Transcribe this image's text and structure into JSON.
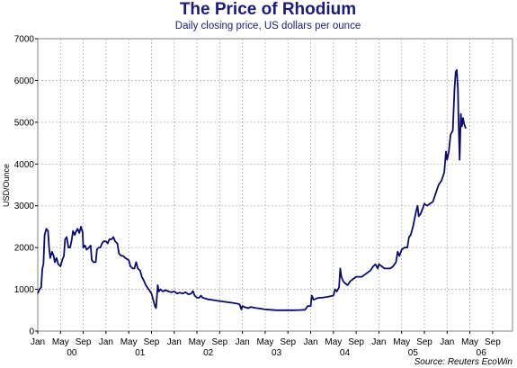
{
  "chart_data": {
    "type": "line",
    "title": "The Price of Rhodium",
    "subtitle": "Daily closing price, US dollars per ounce",
    "ylabel": "USD/Ounce",
    "source": "Source: Reuters EcoWin",
    "ylim": [
      0,
      7000
    ],
    "yticks": [
      0,
      1000,
      2000,
      3000,
      4000,
      5000,
      6000,
      7000
    ],
    "xlim": [
      0,
      83.5
    ],
    "month_ticks": [
      {
        "m": 0,
        "label": "Jan"
      },
      {
        "m": 4,
        "label": "May"
      },
      {
        "m": 8,
        "label": "Sep"
      },
      {
        "m": 12,
        "label": "Jan"
      },
      {
        "m": 16,
        "label": "May"
      },
      {
        "m": 20,
        "label": "Sep"
      },
      {
        "m": 24,
        "label": "Jan"
      },
      {
        "m": 28,
        "label": "May"
      },
      {
        "m": 32,
        "label": "Sep"
      },
      {
        "m": 36,
        "label": "Jan"
      },
      {
        "m": 40,
        "label": "May"
      },
      {
        "m": 44,
        "label": "Sep"
      },
      {
        "m": 48,
        "label": "Jan"
      },
      {
        "m": 52,
        "label": "May"
      },
      {
        "m": 56,
        "label": "Sep"
      },
      {
        "m": 60,
        "label": "Jan"
      },
      {
        "m": 64,
        "label": "May"
      },
      {
        "m": 68,
        "label": "Sep"
      },
      {
        "m": 72,
        "label": "Jan"
      },
      {
        "m": 76,
        "label": "May"
      },
      {
        "m": 80,
        "label": "Sep"
      }
    ],
    "year_labels": [
      {
        "m": 6,
        "label": "00"
      },
      {
        "m": 18,
        "label": "01"
      },
      {
        "m": 30,
        "label": "02"
      },
      {
        "m": 42,
        "label": "03"
      },
      {
        "m": 54,
        "label": "04"
      },
      {
        "m": 66,
        "label": "05"
      },
      {
        "m": 78,
        "label": "06"
      }
    ],
    "x_label_last": "Sep",
    "series": [
      {
        "color": "#0a0a70",
        "points": [
          [
            0,
            900
          ],
          [
            0.3,
            1000
          ],
          [
            0.6,
            1050
          ],
          [
            0.8,
            1500
          ],
          [
            1.0,
            1600
          ],
          [
            1.2,
            2300
          ],
          [
            1.5,
            2450
          ],
          [
            1.8,
            2400
          ],
          [
            2.0,
            2000
          ],
          [
            2.2,
            1750
          ],
          [
            2.5,
            1900
          ],
          [
            2.8,
            1800
          ],
          [
            3.0,
            1650
          ],
          [
            3.3,
            1750
          ],
          [
            3.6,
            1600
          ],
          [
            4.0,
            1550
          ],
          [
            4.3,
            1700
          ],
          [
            4.6,
            1800
          ],
          [
            4.8,
            2200
          ],
          [
            5.1,
            2250
          ],
          [
            5.4,
            2000
          ],
          [
            5.7,
            2000
          ],
          [
            6.0,
            2200
          ],
          [
            6.2,
            2400
          ],
          [
            6.5,
            2300
          ],
          [
            6.8,
            2400
          ],
          [
            7.0,
            2450
          ],
          [
            7.3,
            2350
          ],
          [
            7.6,
            2500
          ],
          [
            7.9,
            2350
          ],
          [
            8.0,
            2000
          ],
          [
            8.3,
            2050
          ],
          [
            8.6,
            1950
          ],
          [
            9.0,
            2000
          ],
          [
            9.3,
            2050
          ],
          [
            9.5,
            1700
          ],
          [
            9.8,
            1650
          ],
          [
            10.2,
            1650
          ],
          [
            10.4,
            1950
          ],
          [
            10.7,
            2000
          ],
          [
            11.0,
            2000
          ],
          [
            11.3,
            2100
          ],
          [
            11.6,
            2150
          ],
          [
            12.0,
            2150
          ],
          [
            12.3,
            2100
          ],
          [
            12.6,
            2200
          ],
          [
            13.0,
            2200
          ],
          [
            13.3,
            2250
          ],
          [
            13.6,
            2150
          ],
          [
            14.0,
            2100
          ],
          [
            14.3,
            1850
          ],
          [
            14.7,
            1800
          ],
          [
            15.0,
            1800
          ],
          [
            15.4,
            1750
          ],
          [
            16.0,
            1700
          ],
          [
            16.3,
            1550
          ],
          [
            16.7,
            1500
          ],
          [
            17.0,
            1500
          ],
          [
            17.3,
            1650
          ],
          [
            17.6,
            1500
          ],
          [
            18.0,
            1450
          ],
          [
            18.3,
            1300
          ],
          [
            18.7,
            1200
          ],
          [
            19.0,
            1100
          ],
          [
            19.5,
            1000
          ],
          [
            20.0,
            900
          ],
          [
            20.3,
            750
          ],
          [
            20.6,
            600
          ],
          [
            20.8,
            550
          ],
          [
            21.0,
            900
          ],
          [
            21.1,
            1100
          ],
          [
            21.3,
            950
          ],
          [
            21.6,
            1000
          ],
          [
            22.0,
            950
          ],
          [
            22.5,
            980
          ],
          [
            23.0,
            950
          ],
          [
            23.5,
            930
          ],
          [
            24.0,
            950
          ],
          [
            24.5,
            900
          ],
          [
            25.0,
            920
          ],
          [
            25.5,
            900
          ],
          [
            26.0,
            930
          ],
          [
            26.5,
            880
          ],
          [
            27.0,
            900
          ],
          [
            27.3,
            960
          ],
          [
            27.6,
            850
          ],
          [
            28.0,
            800
          ],
          [
            28.4,
            800
          ],
          [
            28.7,
            850
          ],
          [
            29.0,
            800
          ],
          [
            29.5,
            780
          ],
          [
            30.0,
            760
          ],
          [
            31.0,
            740
          ],
          [
            32.0,
            720
          ],
          [
            33.0,
            700
          ],
          [
            34.0,
            680
          ],
          [
            35.0,
            660
          ],
          [
            35.5,
            640
          ],
          [
            35.8,
            520
          ],
          [
            36.0,
            600
          ],
          [
            36.3,
            580
          ],
          [
            37.0,
            550
          ],
          [
            37.5,
            580
          ],
          [
            38.0,
            560
          ],
          [
            39.0,
            540
          ],
          [
            40.0,
            520
          ],
          [
            41.0,
            510
          ],
          [
            42.0,
            500
          ],
          [
            43.0,
            500
          ],
          [
            44.0,
            500
          ],
          [
            45.0,
            500
          ],
          [
            46.0,
            505
          ],
          [
            47.0,
            510
          ],
          [
            47.5,
            600
          ],
          [
            48.0,
            600
          ],
          [
            48.2,
            850
          ],
          [
            48.5,
            750
          ],
          [
            49.0,
            780
          ],
          [
            49.5,
            800
          ],
          [
            50.0,
            800
          ],
          [
            51.0,
            820
          ],
          [
            52.0,
            850
          ],
          [
            52.3,
            1000
          ],
          [
            52.6,
            950
          ],
          [
            53.0,
            1050
          ],
          [
            53.2,
            1500
          ],
          [
            53.4,
            1300
          ],
          [
            53.7,
            1200
          ],
          [
            54.0,
            1150
          ],
          [
            54.5,
            1100
          ],
          [
            55.0,
            1200
          ],
          [
            55.5,
            1250
          ],
          [
            56.0,
            1300
          ],
          [
            57.0,
            1300
          ],
          [
            57.5,
            1350
          ],
          [
            58.0,
            1400
          ],
          [
            58.5,
            1450
          ],
          [
            59.0,
            1550
          ],
          [
            59.4,
            1600
          ],
          [
            59.8,
            1500
          ],
          [
            60.0,
            1600
          ],
          [
            60.5,
            1550
          ],
          [
            61.0,
            1500
          ],
          [
            62.0,
            1500
          ],
          [
            62.5,
            1550
          ],
          [
            63.0,
            1650
          ],
          [
            63.3,
            1900
          ],
          [
            63.6,
            1800
          ],
          [
            64.0,
            1950
          ],
          [
            64.5,
            2000
          ],
          [
            65.0,
            2000
          ],
          [
            65.3,
            2250
          ],
          [
            65.6,
            2300
          ],
          [
            66.0,
            2500
          ],
          [
            66.3,
            2700
          ],
          [
            66.6,
            2900
          ],
          [
            66.8,
            3000
          ],
          [
            67.0,
            2750
          ],
          [
            67.3,
            2800
          ],
          [
            67.6,
            2900
          ],
          [
            68.0,
            3050
          ],
          [
            68.5,
            3000
          ],
          [
            69.0,
            3050
          ],
          [
            69.5,
            3100
          ],
          [
            70.0,
            3300
          ],
          [
            70.5,
            3500
          ],
          [
            71.0,
            3600
          ],
          [
            71.5,
            3800
          ],
          [
            71.8,
            4300
          ],
          [
            72.0,
            4100
          ],
          [
            72.3,
            4300
          ],
          [
            72.6,
            4700
          ],
          [
            73.0,
            4800
          ],
          [
            73.3,
            5800
          ],
          [
            73.5,
            6200
          ],
          [
            73.7,
            6250
          ],
          [
            73.9,
            5800
          ],
          [
            74.0,
            5100
          ],
          [
            74.2,
            4100
          ],
          [
            74.4,
            5200
          ],
          [
            74.6,
            4900
          ],
          [
            74.8,
            5100
          ],
          [
            75.0,
            4950
          ],
          [
            75.3,
            4850
          ]
        ]
      }
    ]
  }
}
